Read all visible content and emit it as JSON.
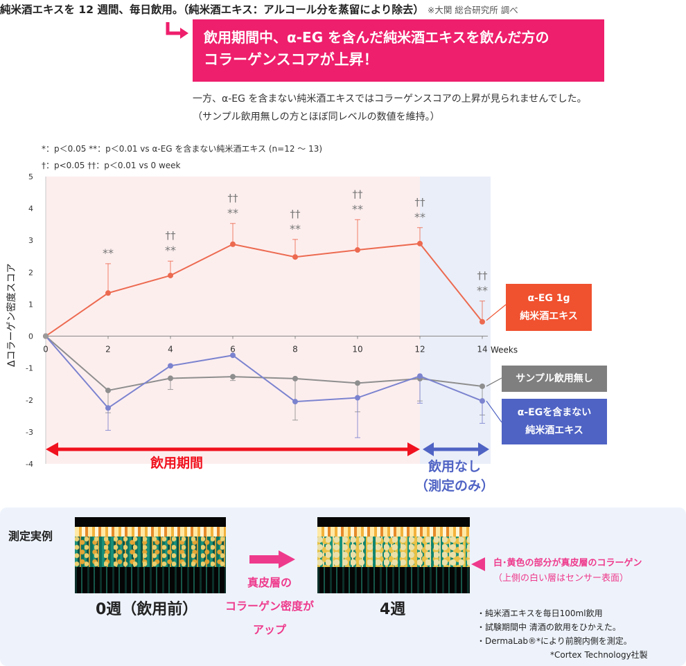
{
  "headline": {
    "main": "純米酒エキスを 12 週間、毎日飲用。（純米酒エキス：アルコール分を蒸留により除去）",
    "note": "※大関 総合研究所 調べ"
  },
  "banner": {
    "line1": "飲用期間中、α-EG を含んだ純米酒エキスを飲んだ方の",
    "line2": "コラーゲンスコアが上昇！"
  },
  "description": {
    "line1": "一方、α-EG を含まない純米酒エキスではコラーゲンスコアの上昇が見られませんでした。",
    "line2": "（サンプル飲用無しの方とほぼ同レベルの数値を維持。）"
  },
  "significance": {
    "line1": "*：p＜0.05  **：p＜0.01   vs   α-EG を含まない純米酒エキス (n=12 ～ 13)",
    "line2": "†：p<0.05   ††：p＜0.01   vs 0 week"
  },
  "colors": {
    "red": "#ec6a50",
    "gray": "#8e8e8e",
    "blue": "#7b83cf",
    "red_box": "#f0512f",
    "gray_box": "#7f7f7f",
    "blue_box": "#4f63c4",
    "magenta": "#ee1f6c",
    "pink": "#ee3a8c",
    "arrow_red": "#f0121e",
    "arrow_blue": "#4f63c4"
  },
  "chart_data": {
    "type": "line",
    "xlabel": "Weeks",
    "ylabel": "Δコラーゲン密度スコア",
    "xlim": [
      0,
      14
    ],
    "ylim": [
      -4,
      5
    ],
    "x": [
      0,
      2,
      4,
      6,
      8,
      10,
      12,
      14
    ],
    "x_ticks": [
      "0",
      "2",
      "4",
      "6",
      "8",
      "10",
      "12",
      "14"
    ],
    "y_ticks": [
      "5",
      "4",
      "3",
      "2",
      "1",
      "0",
      "-1",
      "-2",
      "-3",
      "-4"
    ],
    "x_tick_suffix": "Weeks",
    "drinking_period_weeks": [
      0,
      12
    ],
    "no_drinking_period_weeks": [
      12,
      14
    ],
    "series": [
      {
        "name": "α-EG 1g 純米酒エキス",
        "color": "#ec6a50",
        "values": [
          0,
          1.35,
          1.9,
          2.88,
          2.48,
          2.7,
          2.9,
          0.45
        ],
        "error": [
          0,
          0.92,
          0.45,
          0.65,
          0.55,
          0.95,
          0.5,
          0.65
        ],
        "annotations": [
          {
            "x": 2,
            "dagger": "",
            "star": "**"
          },
          {
            "x": 4,
            "dagger": "††",
            "star": "**"
          },
          {
            "x": 6,
            "dagger": "††",
            "star": "**"
          },
          {
            "x": 8,
            "dagger": "††",
            "star": "**"
          },
          {
            "x": 10,
            "dagger": "††",
            "star": "**"
          },
          {
            "x": 12,
            "dagger": "††",
            "star": "**"
          },
          {
            "x": 14,
            "dagger": "††",
            "star": "**"
          }
        ]
      },
      {
        "name": "サンプル飲用無し",
        "color": "#8e8e8e",
        "values": [
          0,
          -1.7,
          -1.32,
          -1.27,
          -1.33,
          -1.47,
          -1.33,
          -1.57
        ],
        "error": [
          0,
          0.7,
          0.35,
          0.12,
          1.3,
          0.9,
          0.7,
          0.9
        ]
      },
      {
        "name": "α-EGを含まない 純米酒エキス",
        "color": "#7b83cf",
        "values": [
          0,
          -2.25,
          -0.93,
          -0.6,
          -2.05,
          -1.93,
          -1.25,
          -2.03
        ],
        "error": [
          0,
          0.7,
          0.0,
          0.0,
          0.0,
          1.25,
          0.85,
          0.7
        ]
      }
    ]
  },
  "legend": {
    "red": {
      "line1": "α-EG 1g",
      "line2": "純米酒エキス"
    },
    "gray": {
      "line1": "サンプル飲用無し"
    },
    "blue": {
      "line1": "α-EGを含まない",
      "line2": "純米酒エキス"
    }
  },
  "periods": {
    "drinking": "飲用期間",
    "no_drinking_line1": "飲用なし",
    "no_drinking_line2": "（測定のみ）"
  },
  "example": {
    "title": "測定実例",
    "before_caption": "0週（飲用前）",
    "after_caption": "4週",
    "up_line1": "真皮層の",
    "up_line2": "コラーゲン密度が",
    "up_line3": "アップ",
    "white_note_line1": "白･黄色の部分が真皮層のコラーゲン",
    "white_note_line2": "（上側の白い層はセンサー表面）",
    "notes": [
      "・純米酒エキスを毎日100ml飲用",
      "・試験期間中  清酒の飲用をひかえた。",
      "・DermaLab®*により前腕内側を測定。",
      "*Cortex Technology社製"
    ]
  }
}
